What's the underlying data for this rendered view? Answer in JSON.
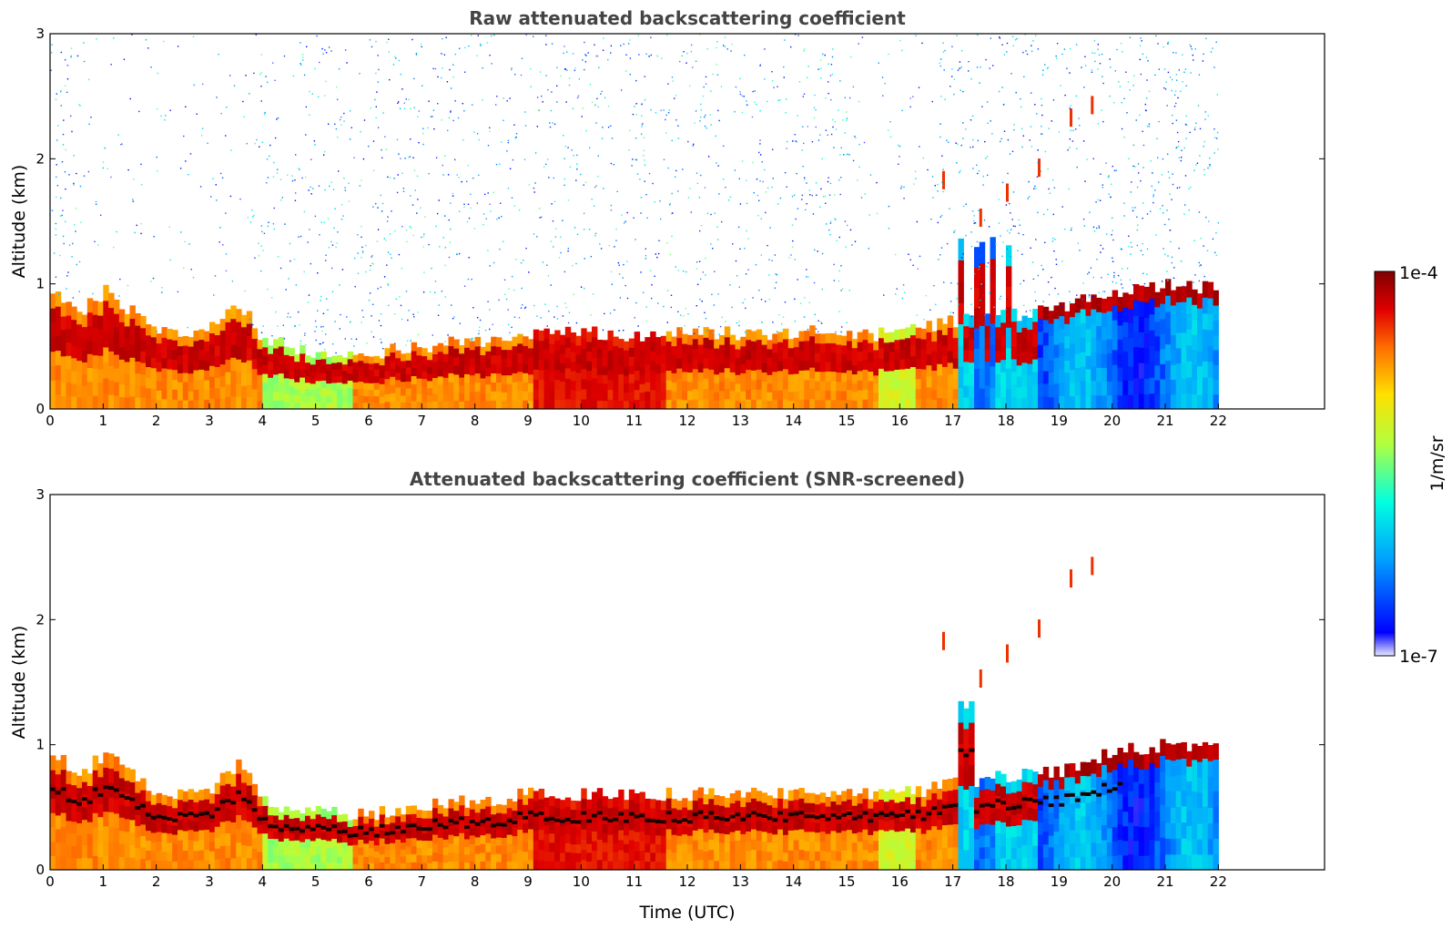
{
  "chart_data": [
    {
      "type": "heatmap",
      "title": "Raw attenuated backscattering coefficient",
      "xlabel": "",
      "ylabel": "Altitude (km)",
      "xlim": [
        0,
        24
      ],
      "ylim": [
        0,
        3
      ],
      "x_ticks": [
        "0",
        "1",
        "2",
        "3",
        "4",
        "5",
        "6",
        "7",
        "8",
        "9",
        "10",
        "11",
        "12",
        "13",
        "14",
        "15",
        "16",
        "17",
        "18",
        "19",
        "20",
        "21",
        "22"
      ],
      "y_ticks": [
        "0",
        "1",
        "2",
        "3"
      ],
      "data_end_time": 22,
      "top_layer_height_km": [
        [
          0,
          0.95
        ],
        [
          0.5,
          0.75
        ],
        [
          1,
          0.95
        ],
        [
          2,
          0.6
        ],
        [
          3,
          0.65
        ],
        [
          3.5,
          0.85
        ],
        [
          4,
          0.55
        ],
        [
          5,
          0.45
        ],
        [
          6,
          0.45
        ],
        [
          7,
          0.5
        ],
        [
          8,
          0.55
        ],
        [
          9,
          0.6
        ],
        [
          10,
          0.6
        ],
        [
          11,
          0.6
        ],
        [
          12,
          0.6
        ],
        [
          13,
          0.6
        ],
        [
          14,
          0.62
        ],
        [
          15,
          0.6
        ],
        [
          16,
          0.6
        ],
        [
          17,
          0.7
        ],
        [
          18,
          0.75
        ],
        [
          19,
          0.8
        ],
        [
          20,
          0.95
        ],
        [
          21,
          1.0
        ],
        [
          22,
          0.95
        ]
      ],
      "elevated_plume_km": [
        [
          16.8,
          1.8
        ],
        [
          17.5,
          1.5
        ],
        [
          18,
          1.7
        ],
        [
          18.6,
          1.9
        ],
        [
          19.2,
          2.3
        ],
        [
          19.6,
          2.4
        ]
      ],
      "noise_above_layer": true
    },
    {
      "type": "heatmap",
      "title": "Attenuated backscattering coefficient (SNR-screened)",
      "xlabel": "Time (UTC)",
      "ylabel": "Altitude (km)",
      "xlim": [
        0,
        24
      ],
      "ylim": [
        0,
        3
      ],
      "x_ticks": [
        "0",
        "1",
        "2",
        "3",
        "4",
        "5",
        "6",
        "7",
        "8",
        "9",
        "10",
        "11",
        "12",
        "13",
        "14",
        "15",
        "16",
        "17",
        "18",
        "19",
        "20",
        "21",
        "22"
      ],
      "y_ticks": [
        "0",
        "1",
        "2",
        "3"
      ],
      "data_end_time": 22,
      "noise_above_layer": false
    }
  ],
  "colorbar": {
    "label": "1/m/sr",
    "max_label": "1e-4",
    "min_label": "1e-7",
    "colormap": "jet",
    "colors": [
      "#e8e8ff",
      "#0000ff",
      "#00a0ff",
      "#00ffe0",
      "#b0ff40",
      "#ffe000",
      "#ff7000",
      "#e00000",
      "#800000"
    ]
  }
}
